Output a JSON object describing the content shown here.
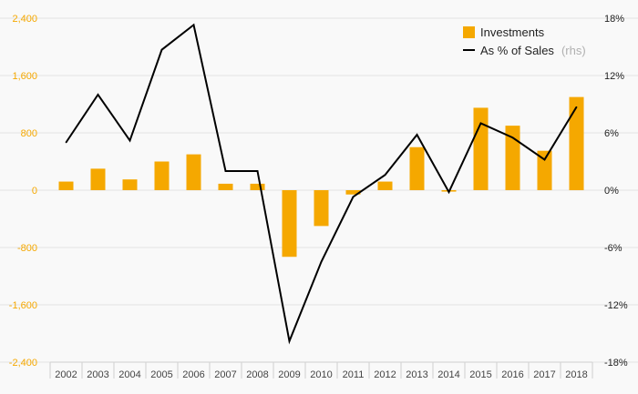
{
  "chart_data": {
    "type": "bar",
    "categories": [
      "2002",
      "2003",
      "2004",
      "2005",
      "2006",
      "2007",
      "2008",
      "2009",
      "2010",
      "2011",
      "2012",
      "2013",
      "2014",
      "2015",
      "2016",
      "2017",
      "2018"
    ],
    "series": [
      {
        "name": "Investments",
        "type": "bar",
        "axis": "left",
        "color": "#f5a800",
        "values": [
          120,
          300,
          150,
          400,
          500,
          90,
          90,
          -930,
          -500,
          -60,
          120,
          600,
          -20,
          1150,
          900,
          550,
          1300
        ]
      },
      {
        "name": "As % of Sales",
        "note": "(rhs)",
        "type": "line",
        "axis": "right",
        "color": "#000000",
        "values": [
          5.0,
          10.0,
          5.2,
          14.7,
          17.3,
          2.0,
          2.0,
          -15.8,
          -7.5,
          -0.7,
          1.6,
          5.8,
          -0.2,
          7.0,
          5.5,
          3.2,
          8.7
        ]
      }
    ],
    "left_axis": {
      "ylim": [
        -2400,
        2400
      ],
      "ticks": [
        2400,
        1600,
        800,
        0,
        -800,
        -1600,
        -2400
      ],
      "tick_labels": [
        "2,400",
        "1,600",
        "800",
        "0",
        "-800",
        "-1,600",
        "-2,400"
      ],
      "color": "#f5a800"
    },
    "right_axis": {
      "ylim": [
        -18,
        18
      ],
      "ticks": [
        18,
        12,
        6,
        0,
        -6,
        -12,
        -18
      ],
      "tick_labels": [
        "18%",
        "12%",
        "6%",
        "0%",
        "-6%",
        "-12%",
        "-18%"
      ]
    },
    "grid": true,
    "legend_position": "top-right"
  }
}
